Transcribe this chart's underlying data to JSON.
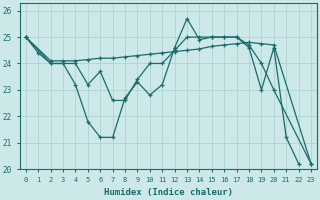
{
  "xlabel": "Humidex (Indice chaleur)",
  "background_color": "#cce8e8",
  "line_color": "#1a6b6b",
  "xlim": [
    -0.5,
    23.5
  ],
  "ylim": [
    20,
    26.3
  ],
  "yticks": [
    20,
    21,
    22,
    23,
    24,
    25,
    26
  ],
  "xticks": [
    0,
    1,
    2,
    3,
    4,
    5,
    6,
    7,
    8,
    9,
    10,
    11,
    12,
    13,
    14,
    15,
    16,
    17,
    18,
    19,
    20,
    21,
    22,
    23
  ],
  "grid_color": "#aacece",
  "font_color": "#1a6b6b",
  "series": [
    {
      "x": [
        0,
        1,
        2,
        3,
        4,
        5,
        6,
        7,
        8,
        9,
        10,
        11,
        12,
        13,
        14,
        15,
        16,
        17,
        18,
        19,
        20,
        21,
        22
      ],
      "y": [
        25.0,
        24.4,
        24.0,
        24.0,
        23.2,
        21.8,
        21.2,
        21.2,
        22.7,
        23.3,
        22.8,
        23.2,
        24.6,
        25.7,
        24.9,
        25.0,
        25.0,
        25.0,
        24.6,
        23.0,
        24.6,
        21.2,
        20.2
      ]
    },
    {
      "x": [
        0,
        2,
        3,
        4,
        5,
        6,
        7,
        8,
        9,
        10,
        11,
        12,
        13,
        14,
        15,
        16,
        17,
        18,
        19,
        20,
        23
      ],
      "y": [
        25.0,
        24.0,
        24.0,
        24.0,
        23.2,
        23.7,
        22.6,
        22.6,
        23.4,
        24.0,
        24.0,
        24.5,
        25.0,
        25.0,
        25.0,
        25.0,
        25.0,
        24.7,
        24.0,
        23.0,
        20.2
      ]
    },
    {
      "x": [
        0,
        2,
        3,
        4,
        5,
        6,
        7,
        8,
        9,
        10,
        11,
        12,
        13,
        14,
        15,
        16,
        17,
        18,
        19,
        20,
        23
      ],
      "y": [
        25.0,
        24.1,
        24.1,
        24.1,
        24.15,
        24.2,
        24.2,
        24.25,
        24.3,
        24.35,
        24.4,
        24.45,
        24.5,
        24.55,
        24.65,
        24.7,
        24.75,
        24.8,
        24.75,
        24.7,
        20.2
      ]
    }
  ]
}
